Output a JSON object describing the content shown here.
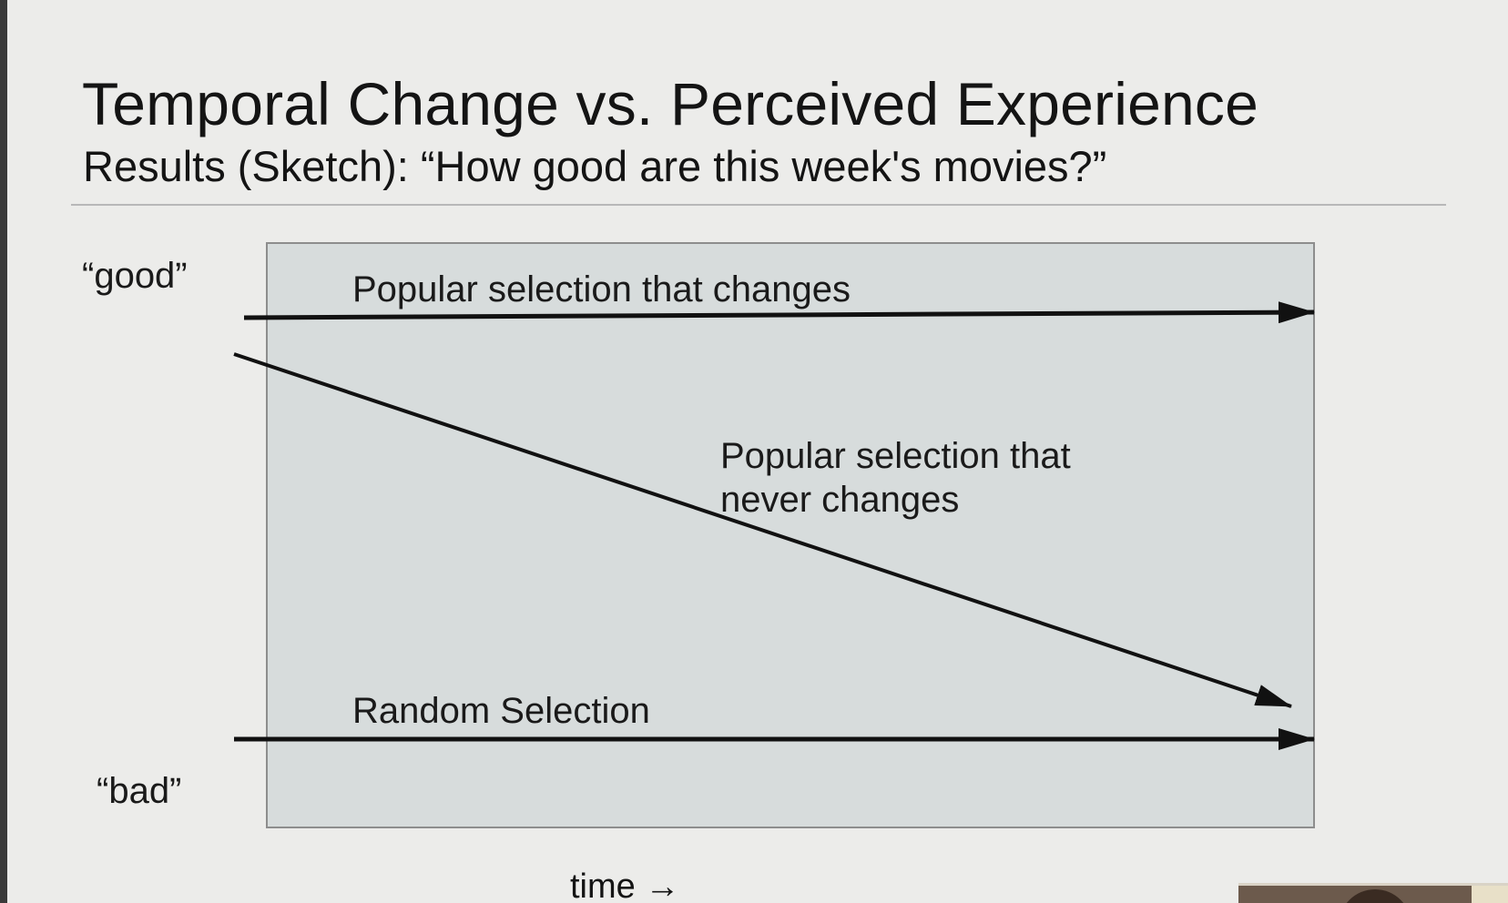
{
  "slide": {
    "title": "Temporal Change vs. Perceived Experience",
    "subtitle": "Results (Sketch): “How good are this week's movies?”"
  },
  "diagram": {
    "y_top_label": "“good”",
    "y_bottom_label": "“bad”",
    "x_label": "time →",
    "lines": {
      "changes": "Popular selection that changes",
      "never_line1": "Popular selection that",
      "never_line2": "never changes",
      "random": "Random Selection"
    }
  },
  "colors": {
    "background": "#ececea",
    "plot_fill": "#d7dcdc",
    "plot_border": "#8d8d8d",
    "arrow": "#111111"
  },
  "icons": {
    "speaker_webcam": "webcam-thumbnail"
  }
}
